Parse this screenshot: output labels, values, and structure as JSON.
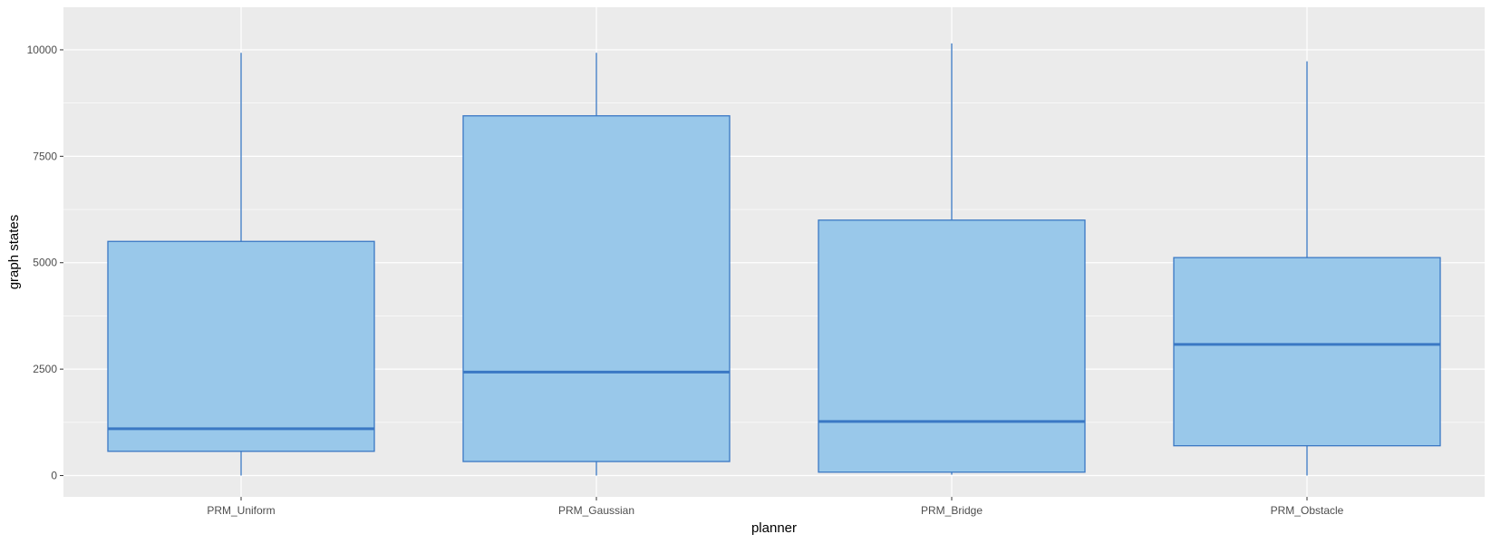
{
  "chart_data": {
    "type": "boxplot",
    "xlabel": "planner",
    "ylabel": "graph states",
    "ylim": [
      -500,
      11000
    ],
    "yticks": [
      0,
      2500,
      5000,
      7500,
      10000
    ],
    "grid": true,
    "categories": [
      "PRM_Uniform",
      "PRM_Gaussian",
      "PRM_Bridge",
      "PRM_Obstacle"
    ],
    "boxes": [
      {
        "category": "PRM_Uniform",
        "min": 0,
        "q1": 570,
        "median": 1100,
        "q3": 5500,
        "max": 9930
      },
      {
        "category": "PRM_Gaussian",
        "min": 0,
        "q1": 330,
        "median": 2430,
        "q3": 8450,
        "max": 9930
      },
      {
        "category": "PRM_Bridge",
        "min": 20,
        "q1": 80,
        "median": 1270,
        "q3": 6000,
        "max": 10150
      },
      {
        "category": "PRM_Obstacle",
        "min": 0,
        "q1": 700,
        "median": 3080,
        "q3": 5120,
        "max": 9730
      }
    ]
  },
  "colors": {
    "panel_background": "#ebebeb",
    "grid_line": "#ffffff",
    "box_fill": "#99c8ea",
    "box_stroke": "#3a78c4",
    "tick_text": "#4d4d4d",
    "tick_mark": "#333333",
    "title_text": "#000000"
  }
}
